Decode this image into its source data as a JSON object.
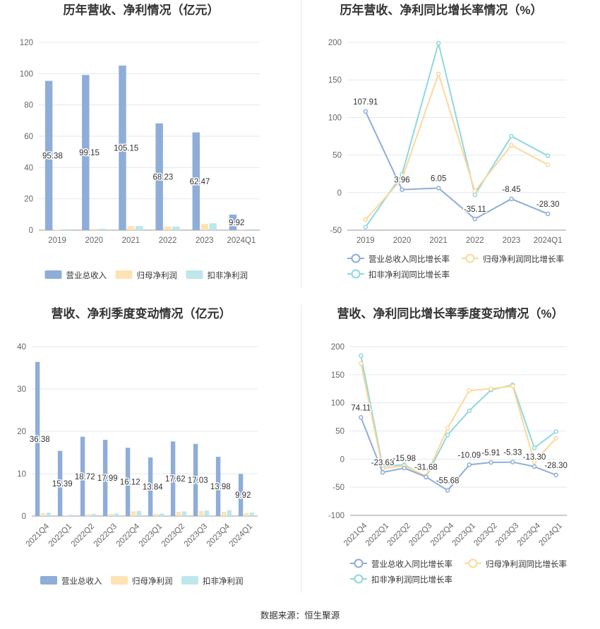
{
  "colors": {
    "revenue": "#8eadd9",
    "net_profit": "#fde3b3",
    "deducted_profit": "#bde7ea",
    "revenue_line": "#8eadd9",
    "net_profit_line": "#fcd89b",
    "deducted_profit_line": "#8fd8dd",
    "grid": "#e3e7ef",
    "divider": "#e6e6e6"
  },
  "source": "数据来源：恒生聚源",
  "chart_data": [
    {
      "id": "annual-amount",
      "type": "bar",
      "title": "历年营收、净利情况（亿元）",
      "categories": [
        "2019",
        "2020",
        "2021",
        "2022",
        "2023",
        "2024Q1"
      ],
      "ylim": [
        0,
        120
      ],
      "yticks": [
        0,
        20,
        40,
        60,
        80,
        100,
        120
      ],
      "series": [
        {
          "name": "营业总收入",
          "values": [
            95.38,
            99.15,
            105.15,
            68.23,
            62.47,
            9.92
          ],
          "labels": [
            "95.38",
            "99.15",
            "105.15",
            "68.23",
            "62.47",
            "9.92"
          ]
        },
        {
          "name": "归母净利润",
          "values": [
            0.3,
            0.8,
            2.6,
            2.4,
            4.0,
            0.5
          ]
        },
        {
          "name": "扣非净利润",
          "values": [
            0.6,
            0.9,
            2.7,
            2.3,
            4.4,
            0.6
          ]
        }
      ]
    },
    {
      "id": "annual-growth",
      "type": "line",
      "title": "历年营收、净利同比增长率情况（%）",
      "categories": [
        "2019",
        "2020",
        "2021",
        "2022",
        "2023",
        "2024Q1"
      ],
      "ylim": [
        -50,
        200
      ],
      "yticks": [
        -50,
        0,
        50,
        100,
        150,
        200
      ],
      "series": [
        {
          "name": "营业总收入同比增长率",
          "values": [
            107.91,
            3.96,
            6.05,
            -35.11,
            -8.45,
            -28.3
          ],
          "labels": [
            "107.91",
            "3.96",
            "6.05",
            "-35.11",
            "-8.45",
            "-28.30"
          ]
        },
        {
          "name": "归母净利润同比增长率",
          "values": [
            -36,
            18,
            158,
            2,
            63,
            37
          ]
        },
        {
          "name": "扣非净利润同比增长率",
          "values": [
            -46,
            24,
            199,
            -3,
            75,
            49
          ]
        }
      ]
    },
    {
      "id": "quarterly-amount",
      "type": "bar",
      "title": "营收、净利季度变动情况（亿元）",
      "categories": [
        "2021Q4",
        "2022Q1",
        "2022Q2",
        "2022Q3",
        "2022Q4",
        "2023Q1",
        "2023Q2",
        "2023Q3",
        "2023Q4",
        "2024Q1"
      ],
      "ylim": [
        0,
        40
      ],
      "yticks": [
        0,
        10,
        20,
        30,
        40
      ],
      "series": [
        {
          "name": "营业总收入",
          "values": [
            36.38,
            15.39,
            18.72,
            17.99,
            16.12,
            13.84,
            17.62,
            17.03,
            13.98,
            9.92
          ],
          "labels": [
            "36.38",
            "15.39",
            "18.72",
            "17.99",
            "16.12",
            "13.84",
            "17.62",
            "17.03",
            "13.98",
            "9.92"
          ]
        },
        {
          "name": "归母净利润",
          "values": [
            0.7,
            0.2,
            0.4,
            0.5,
            1.1,
            0.5,
            1.0,
            1.2,
            1.0,
            0.7
          ]
        },
        {
          "name": "扣非净利润",
          "values": [
            0.8,
            0.3,
            0.5,
            0.6,
            1.2,
            0.6,
            1.1,
            1.3,
            1.4,
            0.8
          ]
        }
      ]
    },
    {
      "id": "quarterly-growth",
      "type": "line",
      "title": "营收、净利同比增长率季度变动情况（%）",
      "categories": [
        "2021Q4",
        "2022Q1",
        "2022Q2",
        "2022Q3",
        "2022Q4",
        "2023Q1",
        "2023Q2",
        "2023Q3",
        "2023Q4",
        "2024Q1"
      ],
      "ylim": [
        -100,
        200
      ],
      "yticks": [
        -100,
        -50,
        0,
        50,
        100,
        150,
        200
      ],
      "series": [
        {
          "name": "营业总收入同比增长率",
          "values": [
            74.11,
            -23.63,
            -15.98,
            -31.68,
            -55.68,
            -10.09,
            -5.91,
            -5.33,
            -13.3,
            -28.3
          ],
          "labels": [
            "74.11",
            "-23.63",
            "-15.98",
            "-31.68",
            "-55.68",
            "-10.09",
            "-5.91",
            "-5.33",
            "-13.30",
            "-28.30"
          ]
        },
        {
          "name": "归母净利润同比增长率",
          "values": [
            170,
            -17,
            -12,
            -30,
            55,
            122,
            125,
            130,
            -5,
            37
          ]
        },
        {
          "name": "扣非净利润同比增长率",
          "values": [
            184,
            -13,
            -10,
            -32,
            43,
            86,
            123,
            132,
            20,
            49
          ]
        }
      ]
    }
  ]
}
